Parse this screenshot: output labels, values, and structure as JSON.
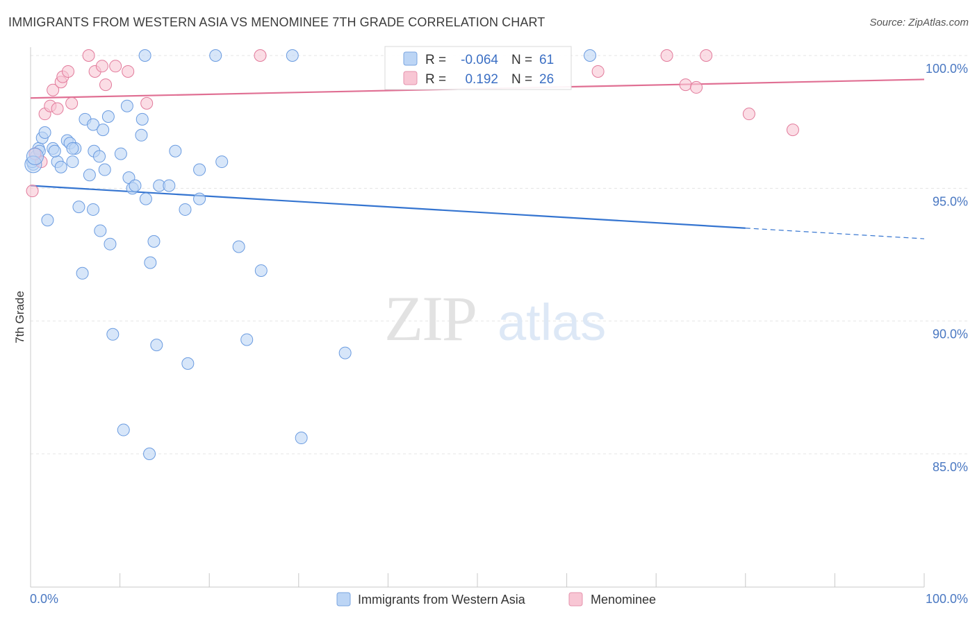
{
  "title": "IMMIGRANTS FROM WESTERN ASIA VS MENOMINEE 7TH GRADE CORRELATION CHART",
  "source": "Source: ZipAtlas.com",
  "watermark": {
    "part1": "ZIP",
    "part2": "atlas"
  },
  "stats_box": [
    {
      "r_label": "R = ",
      "r_value": "-0.064",
      "n_label": "N = ",
      "n_value": "61",
      "color": "#a9c8f0"
    },
    {
      "r_label": "R = ",
      "r_value": "0.192",
      "n_label": "N = ",
      "n_value": "26",
      "color": "#f5b8c8"
    }
  ],
  "chart_data": {
    "type": "scatter",
    "title": "IMMIGRANTS FROM WESTERN ASIA VS MENOMINEE 7TH GRADE CORRELATION CHART",
    "xlabel": "",
    "ylabel": "7th Grade",
    "xlim": [
      0,
      100
    ],
    "ylim": [
      80.5,
      100.8
    ],
    "x_tick_labels": [
      "0.0%",
      "100.0%"
    ],
    "y_ticks": [
      {
        "value": 100,
        "label": "100.0%"
      },
      {
        "value": 95,
        "label": "95.0%"
      },
      {
        "value": 90,
        "label": "90.0%"
      },
      {
        "value": 85,
        "label": "85.0%"
      }
    ],
    "grid": true,
    "legend_position": "bottom",
    "series": [
      {
        "name": "Immigrants from Western Asia",
        "color": "#6a9be0",
        "fill": "#bcd5f5",
        "trend": {
          "x0": 0,
          "y0": 95.1,
          "x1": 80,
          "y1": 93.5,
          "dash_to_x": 100,
          "dash_to_y": 93.1
        },
        "points": [
          [
            0.3,
            95.9
          ],
          [
            0.6,
            96.2
          ],
          [
            0.9,
            96.5
          ],
          [
            1.3,
            96.9
          ],
          [
            1.6,
            97.1
          ],
          [
            2.5,
            96.5
          ],
          [
            3.0,
            96.0
          ],
          [
            3.4,
            95.8
          ],
          [
            4.1,
            96.8
          ],
          [
            4.4,
            96.7
          ],
          [
            4.7,
            96.0
          ],
          [
            5.0,
            96.5
          ],
          [
            6.1,
            97.6
          ],
          [
            6.6,
            95.5
          ],
          [
            7.0,
            94.2
          ],
          [
            7.1,
            96.4
          ],
          [
            7.0,
            97.4
          ],
          [
            7.7,
            96.2
          ],
          [
            8.1,
            97.2
          ],
          [
            8.3,
            95.7
          ],
          [
            8.7,
            97.7
          ],
          [
            7.8,
            93.4
          ],
          [
            8.9,
            92.9
          ],
          [
            5.4,
            94.3
          ],
          [
            1.9,
            93.8
          ],
          [
            5.8,
            91.8
          ],
          [
            10.1,
            96.3
          ],
          [
            10.8,
            98.1
          ],
          [
            11.0,
            95.4
          ],
          [
            11.4,
            95.0
          ],
          [
            11.7,
            95.1
          ],
          [
            12.4,
            97.0
          ],
          [
            12.5,
            97.6
          ],
          [
            12.9,
            94.6
          ],
          [
            13.4,
            92.2
          ],
          [
            13.8,
            93.0
          ],
          [
            14.4,
            95.1
          ],
          [
            15.5,
            95.1
          ],
          [
            16.2,
            96.4
          ],
          [
            17.3,
            94.2
          ],
          [
            18.9,
            95.7
          ],
          [
            18.9,
            94.6
          ],
          [
            21.4,
            96.0
          ],
          [
            23.3,
            92.8
          ],
          [
            25.8,
            91.9
          ],
          [
            12.8,
            100.0
          ],
          [
            20.7,
            100.0
          ],
          [
            29.3,
            100.0
          ],
          [
            62.6,
            100.0
          ],
          [
            9.2,
            89.5
          ],
          [
            14.1,
            89.1
          ],
          [
            24.2,
            89.3
          ],
          [
            17.6,
            88.4
          ],
          [
            35.2,
            88.8
          ],
          [
            10.4,
            85.9
          ],
          [
            13.3,
            85.0
          ],
          [
            30.3,
            85.6
          ],
          [
            0.2,
            96.0
          ],
          [
            1.0,
            96.4
          ],
          [
            2.7,
            96.4
          ],
          [
            4.7,
            96.5
          ]
        ]
      },
      {
        "name": "Menominee",
        "color": "#e27a9b",
        "fill": "#f8c6d4",
        "trend": {
          "x0": 0,
          "y0": 98.4,
          "x1": 100,
          "y1": 99.1
        },
        "points": [
          [
            0.2,
            94.9
          ],
          [
            1.2,
            96.0
          ],
          [
            1.6,
            97.8
          ],
          [
            2.2,
            98.1
          ],
          [
            2.5,
            98.7
          ],
          [
            3.0,
            98.0
          ],
          [
            3.4,
            99.0
          ],
          [
            3.6,
            99.2
          ],
          [
            4.2,
            99.4
          ],
          [
            4.6,
            98.2
          ],
          [
            6.5,
            100.0
          ],
          [
            7.2,
            99.4
          ],
          [
            8.0,
            99.6
          ],
          [
            8.4,
            98.9
          ],
          [
            9.5,
            99.6
          ],
          [
            10.9,
            99.4
          ],
          [
            13.0,
            98.2
          ],
          [
            25.7,
            100.0
          ],
          [
            63.5,
            99.4
          ],
          [
            71.2,
            100.0
          ],
          [
            73.3,
            98.9
          ],
          [
            74.5,
            98.8
          ],
          [
            75.6,
            100.0
          ],
          [
            80.4,
            97.8
          ],
          [
            85.3,
            97.2
          ],
          [
            0.5,
            96.3
          ]
        ]
      }
    ]
  }
}
